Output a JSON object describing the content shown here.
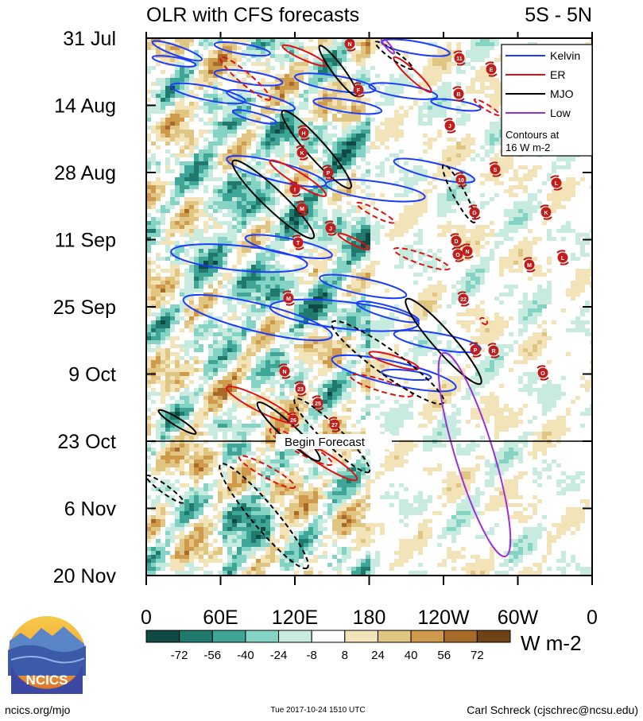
{
  "chart_data": {
    "type": "heatmap",
    "title": "OLR with CFS forecasts",
    "region": "5S - 5N",
    "x_tick_labels": [
      "0",
      "60E",
      "120E",
      "180",
      "120W",
      "60W",
      "0"
    ],
    "x_range_deg": [
      0,
      360
    ],
    "y_tick_labels": [
      "31 Jul",
      "14 Aug",
      "28 Aug",
      "11 Sep",
      "25 Sep",
      "9 Oct",
      "23 Oct",
      "6 Nov",
      "20 Nov"
    ],
    "y_range_days_from_top": [
      0,
      112
    ],
    "grid": false,
    "forecast_start_label": "Begin Forecast",
    "forecast_start_day": 84,
    "legend": {
      "placement": "top-right",
      "entries": [
        {
          "name": "Kelvin",
          "color": "#1a3cff"
        },
        {
          "name": "ER",
          "color": "#e01010"
        },
        {
          "name": "MJO",
          "color": "#000000"
        },
        {
          "name": "Low",
          "color": "#9b30d9"
        }
      ],
      "note_line1": "Contours at",
      "note_line2": "16 W m-2"
    },
    "colorbar": {
      "labels": [
        "-72",
        "-56",
        "-40",
        "-24",
        "-8",
        "8",
        "24",
        "40",
        "56",
        "72"
      ],
      "colors": [
        "#0f4a45",
        "#1f7a6d",
        "#3fa596",
        "#85d3c4",
        "#c7ecdf",
        "#ffffff",
        "#f3e3b8",
        "#e0c583",
        "#cf9a4b",
        "#a86a28",
        "#6e4316"
      ],
      "unit": "W m-2"
    },
    "series": [
      {
        "name": "Kelvin",
        "segments": [
          [
            [
              5,
              5
            ],
            [
              45,
              28
            ]
          ],
          [
            [
              55,
              8
            ],
            [
              100,
              20
            ]
          ],
          [
            [
              5,
              25
            ],
            [
              40,
              35
            ]
          ],
          [
            [
              20,
              62
            ],
            [
              80,
              82
            ]
          ],
          [
            [
              55,
              45
            ],
            [
              110,
              58
            ]
          ],
          [
            [
              65,
              70
            ],
            [
              120,
              92
            ]
          ],
          [
            [
              120,
              50
            ],
            [
              185,
              67
            ]
          ],
          [
            [
              135,
              82
            ],
            [
              190,
              95
            ]
          ],
          [
            [
              70,
              95
            ],
            [
              105,
              110
            ]
          ],
          [
            [
              190,
              5
            ],
            [
              245,
              20
            ]
          ],
          [
            [
              180,
              62
            ],
            [
              235,
              76
            ]
          ],
          [
            [
              230,
              82
            ],
            [
              270,
              92
            ]
          ],
          [
            [
              65,
              157
            ],
            [
              145,
              190
            ]
          ],
          [
            [
              200,
              160
            ],
            [
              265,
              185
            ]
          ],
          [
            [
              145,
              190
            ],
            [
              225,
              207
            ]
          ],
          [
            [
              20,
              278
            ],
            [
              130,
              295
            ]
          ],
          [
            [
              80,
              260
            ],
            [
              150,
              283
            ]
          ],
          [
            [
              30,
              340
            ],
            [
              150,
              388
            ]
          ],
          [
            [
              140,
              312
            ],
            [
              210,
              335
            ]
          ],
          [
            [
              170,
              345
            ],
            [
              220,
              368
            ]
          ],
          [
            [
              100,
              350
            ],
            [
              220,
              372
            ]
          ],
          [
            [
              200,
              385
            ],
            [
              270,
              405
            ]
          ],
          [
            [
              190,
              435
            ],
            [
              230,
              442
            ]
          ],
          [
            [
              150,
              418
            ],
            [
              250,
              455
            ]
          ],
          [
            [
              455,
              450
            ],
            [
              480,
              465
            ]
          ]
        ]
      },
      {
        "name": "ER",
        "segments": [
          [
            [
              110,
              10
            ],
            [
              145,
              35
            ]
          ],
          [
            [
              60,
              25
            ],
            [
              100,
              80
            ]
          ],
          [
            [
              200,
              25
            ],
            [
              230,
              70
            ]
          ],
          [
            [
              265,
              80
            ],
            [
              285,
              100
            ]
          ],
          [
            [
              100,
              160
            ],
            [
              145,
              205
            ]
          ],
          [
            [
              170,
              215
            ],
            [
              200,
              240
            ]
          ],
          [
            [
              155,
              255
            ],
            [
              180,
              275
            ]
          ],
          [
            [
              200,
              275
            ],
            [
              245,
              300
            ]
          ],
          [
            [
              180,
              410
            ],
            [
              220,
              430
            ]
          ],
          [
            [
              165,
              440
            ],
            [
              215,
              465
            ]
          ],
          [
            [
              65,
              455
            ],
            [
              120,
              500
            ]
          ],
          [
            [
              100,
              510
            ],
            [
              150,
              555
            ]
          ],
          [
            [
              120,
              525
            ],
            [
              170,
              575
            ]
          ],
          [
            [
              75,
              545
            ],
            [
              120,
              585
            ]
          ],
          [
            [
              470,
              370
            ],
            [
              510,
              405
            ]
          ],
          [
            [
              270,
              365
            ],
            [
              275,
              372
            ]
          ]
        ]
      },
      {
        "name": "MJO",
        "segments": [
          [
            [
              140,
              10
            ],
            [
              170,
              75
            ]
          ],
          [
            [
              185,
              5
            ],
            [
              215,
              40
            ]
          ],
          [
            [
              110,
              95
            ],
            [
              165,
              195
            ]
          ],
          [
            [
              240,
              165
            ],
            [
              265,
              240
            ]
          ],
          [
            [
              70,
              160
            ],
            [
              135,
              260
            ]
          ],
          [
            [
              150,
              370
            ],
            [
              240,
              475
            ]
          ],
          [
            [
              210,
              340
            ],
            [
              270,
              450
            ]
          ],
          [
            [
              120,
              470
            ],
            [
              180,
              565
            ]
          ],
          [
            [
              90,
              475
            ],
            [
              140,
              550
            ]
          ],
          [
            [
              60,
              555
            ],
            [
              130,
              690
            ]
          ],
          [
            [
              10,
              485
            ],
            [
              40,
              515
            ]
          ],
          [
            [
              0,
              570
            ],
            [
              30,
              605
            ]
          ],
          [
            [
              450,
              470
            ],
            [
              465,
              490
            ]
          ]
        ]
      },
      {
        "name": "Low",
        "segments": [
          [
            [
              190,
              0
            ],
            [
              200,
              20
            ]
          ],
          [
            [
              240,
              410
            ],
            [
              290,
              675
            ]
          ]
        ]
      }
    ],
    "storm_markers": [
      {
        "label": "N"
      },
      {
        "label": "11"
      },
      {
        "label": "E"
      },
      {
        "label": "F"
      },
      {
        "label": "B"
      },
      {
        "label": "J"
      },
      {
        "label": "H"
      },
      {
        "label": "K"
      },
      {
        "label": "P"
      },
      {
        "label": "S"
      },
      {
        "label": "10"
      },
      {
        "label": "L"
      },
      {
        "label": "I"
      },
      {
        "label": "M"
      },
      {
        "label": "G"
      },
      {
        "label": "K"
      },
      {
        "label": "J"
      },
      {
        "label": "T"
      },
      {
        "label": "D"
      },
      {
        "label": "O"
      },
      {
        "label": "N"
      },
      {
        "label": "M"
      },
      {
        "label": "L"
      },
      {
        "label": "M"
      },
      {
        "label": "22"
      },
      {
        "label": "P"
      },
      {
        "label": "R"
      },
      {
        "label": "N"
      },
      {
        "label": "23"
      },
      {
        "label": "O"
      },
      {
        "label": "25"
      },
      {
        "label": "26"
      },
      {
        "label": "27"
      }
    ]
  },
  "logo": {
    "text": "NCICS"
  },
  "footer": {
    "left": "ncics.org/mjo",
    "center": "Tue 2017-10-24 1510 UTC",
    "right": "Carl Schreck (cjschrec@ncsu.edu)"
  }
}
